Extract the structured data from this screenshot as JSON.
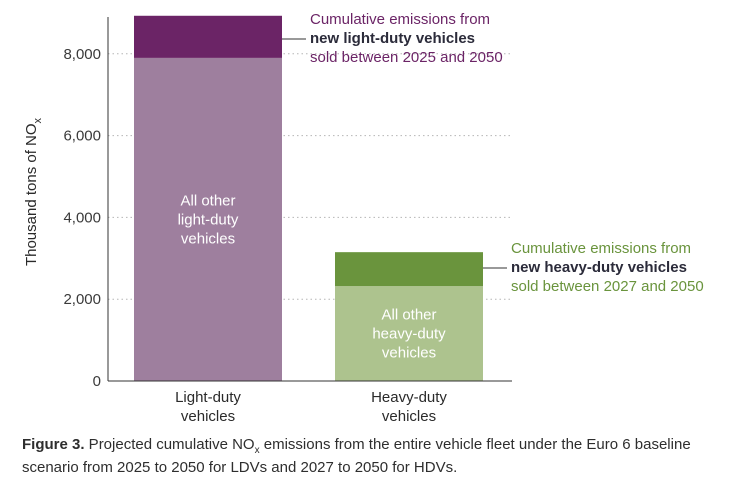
{
  "chart_data": {
    "type": "bar",
    "stacked": true,
    "categories": [
      [
        "Light-duty",
        "vehicles"
      ],
      [
        "Heavy-duty",
        "vehicles"
      ]
    ],
    "ylabel": "Thousand tons of NO",
    "ylabel_sub": "x",
    "ylim": [
      0,
      8900
    ],
    "yticks": [
      0,
      2000,
      4000,
      6000,
      8000
    ],
    "ytick_labels": [
      "0",
      "2,000",
      "4,000",
      "6,000",
      "8,000"
    ],
    "grid": "horizontal-dotted",
    "bars": [
      {
        "category_index": 0,
        "segments": [
          {
            "role": "other",
            "value": 7900,
            "color": "#9e7f9e",
            "label": [
              "All other",
              "light-duty",
              "vehicles"
            ]
          },
          {
            "role": "new",
            "value": 1030,
            "color": "#6b2466"
          }
        ],
        "annotation": {
          "line1": "Cumulative emissions from",
          "line2": "new light-duty vehicles",
          "line3": "sold between 2025 and 2050",
          "color": "#6b2466"
        }
      },
      {
        "category_index": 1,
        "segments": [
          {
            "role": "other",
            "value": 2320,
            "color": "#adc38e",
            "label": [
              "All other",
              "heavy-duty",
              "vehicles"
            ]
          },
          {
            "role": "new",
            "value": 830,
            "color": "#6a943d"
          }
        ],
        "annotation": {
          "line1": "Cumulative emissions from",
          "line2": "new heavy-duty vehicles",
          "line3": "sold between 2027 and 2050",
          "color": "#6a943d"
        }
      }
    ]
  },
  "caption": {
    "figure_label": "Figure 3.",
    "text_before_sub": " Projected cumulative NO",
    "sub": "x",
    "text_after_sub": " emissions from the entire vehicle fleet under the Euro 6 baseline scenario from 2025 to 2050 for LDVs and 2027 to 2050 for HDVs."
  },
  "colors": {
    "axis": "#333333",
    "grid": "#b5b5b5",
    "bold_annotation": "#2b2b3a"
  }
}
